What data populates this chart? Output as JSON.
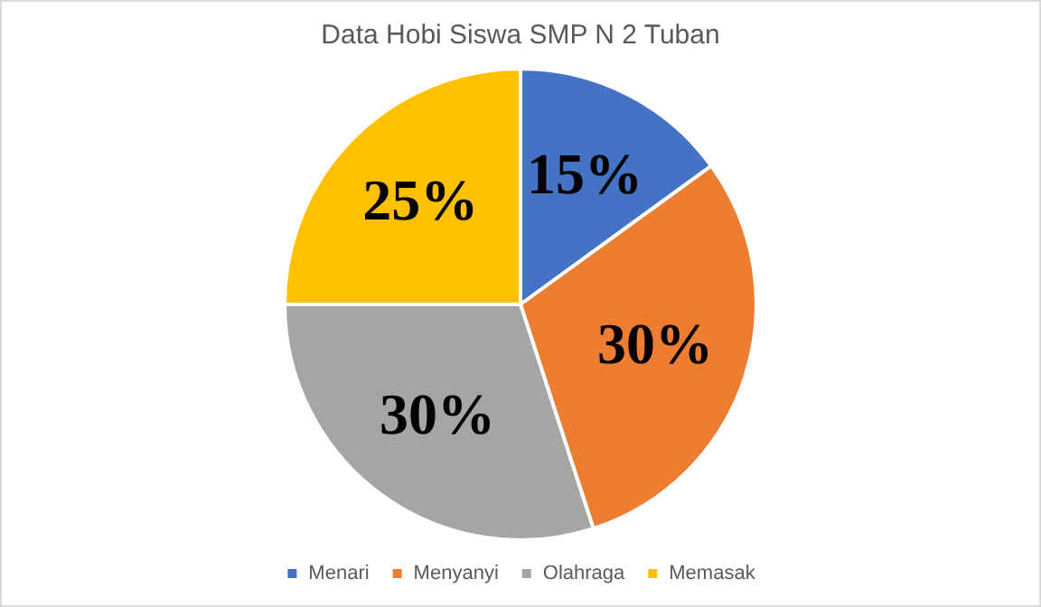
{
  "chart_data": {
    "type": "pie",
    "title": "Data Hobi Siswa SMP N 2 Tuban",
    "categories": [
      "Menari",
      "Menyanyi",
      "Olahraga",
      "Memasak"
    ],
    "values": [
      15,
      30,
      30,
      25
    ],
    "value_labels": [
      "15%",
      "30%",
      "30%",
      "25%"
    ],
    "colors": [
      "#4472c4",
      "#ed7d31",
      "#a5a5a5",
      "#ffc000"
    ],
    "legend": "bottom"
  }
}
